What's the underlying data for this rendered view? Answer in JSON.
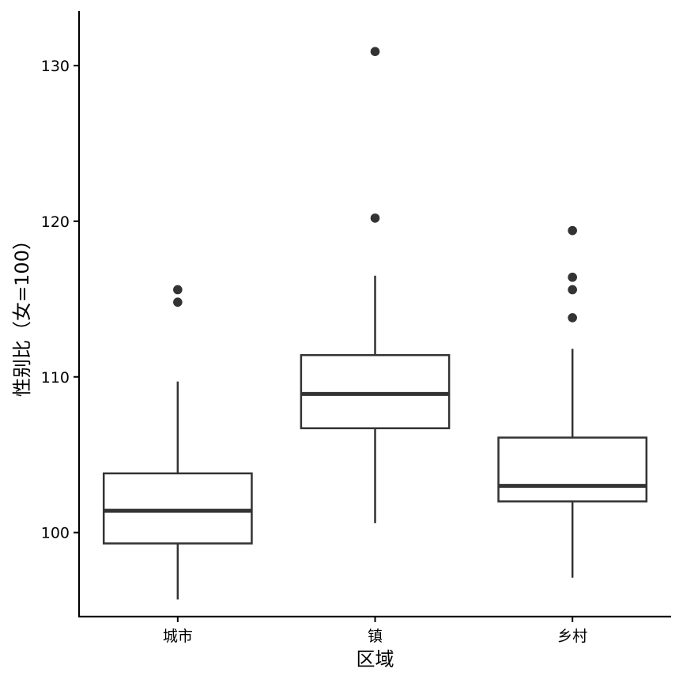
{
  "chart_data": {
    "type": "boxplot",
    "xlabel": "区域",
    "ylabel": "性别比（女=100）",
    "categories": [
      "城市",
      "镇",
      "乡村"
    ],
    "ylim": [
      94.6,
      133.5
    ],
    "yticks": [
      100,
      110,
      120,
      130
    ],
    "grid": false,
    "legend": "none",
    "boxes": [
      {
        "category": "城市",
        "lower_whisker": 95.7,
        "q1": 99.3,
        "median": 101.4,
        "q3": 103.8,
        "upper_whisker": 109.7,
        "outliers": [
          114.8,
          115.6
        ]
      },
      {
        "category": "镇",
        "lower_whisker": 100.6,
        "q1": 106.7,
        "median": 108.9,
        "q3": 111.4,
        "upper_whisker": 116.5,
        "outliers": [
          120.2,
          130.9
        ]
      },
      {
        "category": "乡村",
        "lower_whisker": 97.1,
        "q1": 102.0,
        "median": 103.0,
        "q3": 106.1,
        "upper_whisker": 111.8,
        "outliers": [
          113.8,
          115.6,
          116.4,
          119.4
        ]
      }
    ],
    "colors": {
      "box_stroke": "#333333",
      "box_fill": "#ffffff",
      "axis": "#000000"
    }
  }
}
